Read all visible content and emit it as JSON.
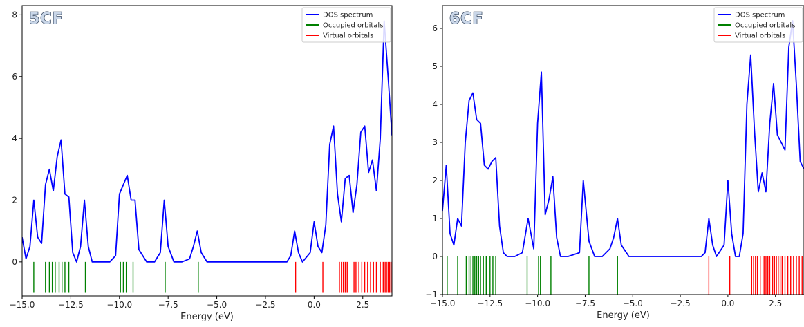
{
  "chart_data": [
    {
      "type": "line",
      "panel_label": "5CF",
      "xlabel": "Energy (eV)",
      "ylabel": "",
      "xlim": [
        -15.0,
        4.0
      ],
      "ylim": [
        -1.1,
        8.3
      ],
      "xticks": [
        "−15.0",
        "−12.5",
        "−10.0",
        "−7.5",
        "−5.0",
        "−2.5",
        "0.0",
        "2.5"
      ],
      "xtick_values": [
        -15.0,
        -12.5,
        -10.0,
        -7.5,
        -5.0,
        -2.5,
        0.0,
        2.5
      ],
      "yticks": [
        "0",
        "2",
        "4",
        "6",
        "8"
      ],
      "ytick_values": [
        0,
        2,
        4,
        6,
        8
      ],
      "legend": {
        "position": "top-right",
        "entries": [
          "DOS spectrum",
          "Occupied orbitals",
          "Virtual orbitals"
        ]
      },
      "colors": {
        "dos": "#0000ff",
        "occupied": "#008000",
        "virtual": "#ff0000"
      },
      "grid": false,
      "series": [
        {
          "name": "DOS spectrum",
          "x": [
            -15.0,
            -14.8,
            -14.6,
            -14.4,
            -14.2,
            -14.0,
            -13.8,
            -13.6,
            -13.4,
            -13.2,
            -13.0,
            -12.8,
            -12.6,
            -12.4,
            -12.2,
            -12.0,
            -11.8,
            -11.6,
            -11.4,
            -11.0,
            -10.5,
            -10.2,
            -10.0,
            -9.8,
            -9.6,
            -9.4,
            -9.2,
            -9.0,
            -8.6,
            -8.2,
            -7.9,
            -7.7,
            -7.5,
            -7.2,
            -6.8,
            -6.4,
            -6.2,
            -6.0,
            -5.8,
            -5.5,
            -5.0,
            -3.0,
            -1.4,
            -1.2,
            -1.0,
            -0.8,
            -0.6,
            -0.2,
            0.0,
            0.2,
            0.4,
            0.6,
            0.8,
            1.0,
            1.2,
            1.4,
            1.6,
            1.8,
            2.0,
            2.2,
            2.4,
            2.6,
            2.8,
            3.0,
            3.2,
            3.4,
            3.6,
            3.8,
            4.0
          ],
          "y": [
            0.8,
            0.1,
            0.5,
            2.0,
            0.8,
            0.6,
            2.5,
            3.0,
            2.3,
            3.4,
            3.95,
            2.2,
            2.1,
            0.3,
            0.0,
            0.5,
            2.0,
            0.5,
            0.0,
            0.0,
            0.0,
            0.2,
            2.2,
            2.5,
            2.8,
            2.0,
            2.0,
            0.4,
            0.0,
            0.0,
            0.3,
            2.0,
            0.5,
            0.0,
            0.0,
            0.1,
            0.5,
            1.0,
            0.3,
            0.0,
            0.0,
            0.0,
            0.0,
            0.2,
            1.0,
            0.3,
            0.0,
            0.3,
            1.3,
            0.5,
            0.3,
            1.2,
            3.8,
            4.4,
            2.2,
            1.3,
            2.7,
            2.8,
            1.6,
            2.5,
            4.2,
            4.4,
            2.9,
            3.3,
            2.3,
            4.0,
            7.8,
            6.0,
            4.1
          ]
        }
      ],
      "occupied_orbitals": [
        -14.4,
        -13.8,
        -13.6,
        -13.45,
        -13.3,
        -13.1,
        -12.95,
        -12.8,
        -12.6,
        -11.75,
        -9.95,
        -9.8,
        -9.65,
        -9.3,
        -7.65,
        -5.95
      ],
      "virtual_orbitals": [
        -0.95,
        0.45,
        1.3,
        1.4,
        1.5,
        1.6,
        1.7,
        2.05,
        2.15,
        2.3,
        2.45,
        2.6,
        2.75,
        2.9,
        3.05,
        3.2,
        3.4,
        3.55,
        3.65,
        3.72,
        3.8,
        3.88,
        3.95
      ]
    },
    {
      "type": "line",
      "panel_label": "6CF",
      "xlabel": "Energy (eV)",
      "ylabel": "",
      "xlim": [
        -15.0,
        4.0
      ],
      "ylim": [
        -1.0,
        6.6
      ],
      "xticks": [
        "−15.0",
        "−12.5",
        "−10.0",
        "−7.5",
        "−5.0",
        "−2.5",
        "0.0",
        "2.5"
      ],
      "xtick_values": [
        -15.0,
        -12.5,
        -10.0,
        -7.5,
        -5.0,
        -2.5,
        0.0,
        2.5
      ],
      "yticks": [
        "−1",
        "0",
        "1",
        "2",
        "3",
        "4",
        "5",
        "6"
      ],
      "ytick_values": [
        -1,
        0,
        1,
        2,
        3,
        4,
        5,
        6
      ],
      "legend": {
        "position": "top-right",
        "entries": [
          "DOS spectrum",
          "Occupied orbitals",
          "Virtual orbitals"
        ]
      },
      "colors": {
        "dos": "#0000ff",
        "occupied": "#008000",
        "virtual": "#ff0000"
      },
      "grid": false,
      "series": [
        {
          "name": "DOS spectrum",
          "x": [
            -15.0,
            -14.8,
            -14.6,
            -14.4,
            -14.2,
            -14.0,
            -13.8,
            -13.6,
            -13.4,
            -13.2,
            -13.0,
            -12.8,
            -12.6,
            -12.4,
            -12.2,
            -12.0,
            -11.8,
            -11.6,
            -11.2,
            -10.8,
            -10.5,
            -10.2,
            -10.0,
            -9.8,
            -9.6,
            -9.4,
            -9.2,
            -9.0,
            -8.8,
            -8.4,
            -7.8,
            -7.6,
            -7.3,
            -7.0,
            -6.6,
            -6.2,
            -6.0,
            -5.8,
            -5.6,
            -5.2,
            -3.0,
            -1.4,
            -1.2,
            -1.0,
            -0.8,
            -0.6,
            -0.2,
            0.0,
            0.2,
            0.4,
            0.6,
            0.8,
            1.0,
            1.2,
            1.4,
            1.6,
            1.8,
            2.0,
            2.2,
            2.4,
            2.6,
            2.8,
            3.0,
            3.2,
            3.4,
            3.6,
            3.8,
            4.0
          ],
          "y": [
            1.2,
            2.4,
            0.6,
            0.3,
            1.0,
            0.8,
            3.0,
            4.1,
            4.3,
            3.6,
            3.5,
            2.4,
            2.3,
            2.5,
            2.6,
            0.8,
            0.1,
            0.0,
            0.0,
            0.1,
            1.0,
            0.2,
            3.5,
            4.85,
            1.1,
            1.5,
            2.1,
            0.5,
            0.0,
            0.0,
            0.1,
            2.0,
            0.4,
            0.0,
            0.0,
            0.2,
            0.5,
            1.0,
            0.3,
            0.0,
            0.0,
            0.0,
            0.1,
            1.0,
            0.3,
            0.0,
            0.3,
            2.0,
            0.6,
            0.0,
            0.0,
            0.6,
            4.0,
            5.3,
            3.3,
            1.7,
            2.2,
            1.7,
            3.5,
            4.55,
            3.2,
            3.0,
            2.8,
            5.5,
            6.2,
            4.5,
            2.5,
            2.3
          ]
        }
      ],
      "occupied_orbitals": [
        -15.0,
        -14.75,
        -14.2,
        -13.75,
        -13.6,
        -13.5,
        -13.4,
        -13.3,
        -13.2,
        -13.1,
        -13.0,
        -12.85,
        -12.7,
        -12.5,
        -12.35,
        -12.2,
        -10.55,
        -9.95,
        -9.85,
        -9.3,
        -7.3,
        -5.8
      ],
      "virtual_orbitals": [
        -1.0,
        0.1,
        1.25,
        1.35,
        1.45,
        1.55,
        1.7,
        1.9,
        2.0,
        2.1,
        2.2,
        2.35,
        2.45,
        2.55,
        2.65,
        2.75,
        2.85,
        3.0,
        3.15,
        3.3,
        3.45,
        3.6,
        3.75,
        3.9
      ]
    }
  ]
}
